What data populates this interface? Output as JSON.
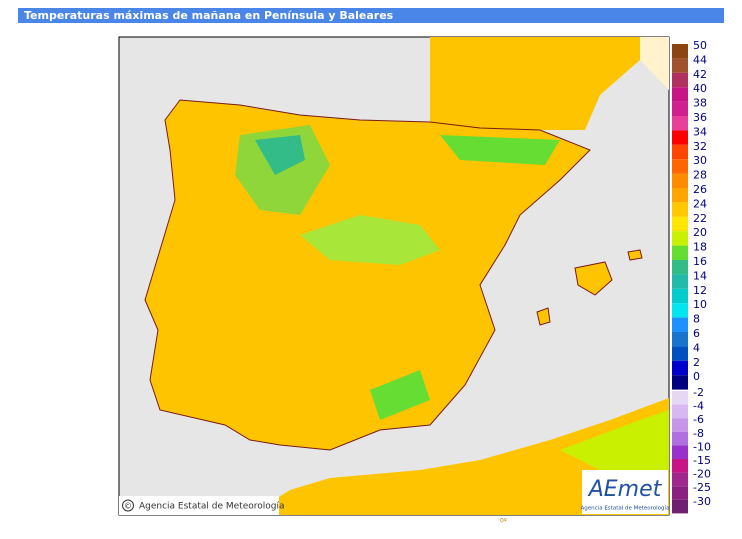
{
  "header": {
    "title": "Temperaturas máximas de mañana en Península y Baleares"
  },
  "map": {
    "credit": "Agencia Estatal de Meteorología",
    "credit_symbol": "©",
    "longitude_label": "0º",
    "logo": {
      "name": "AEmet",
      "subtitle": "Agencia Estatal de Meteorología"
    }
  },
  "legend": {
    "items": [
      {
        "label": 50,
        "color": "#8b4513"
      },
      {
        "label": 44,
        "color": "#a0522d"
      },
      {
        "label": 42,
        "color": "#b03060"
      },
      {
        "label": 40,
        "color": "#c71585"
      },
      {
        "label": 38,
        "color": "#d02090"
      },
      {
        "label": 36,
        "color": "#e8409a"
      },
      {
        "label": 34,
        "color": "#ff0000"
      },
      {
        "label": 32,
        "color": "#ff4500"
      },
      {
        "label": 30,
        "color": "#ff6600"
      },
      {
        "label": 28,
        "color": "#ff8c00"
      },
      {
        "label": 26,
        "color": "#ffa500"
      },
      {
        "label": 24,
        "color": "#ffc800"
      },
      {
        "label": 22,
        "color": "#ffe600"
      },
      {
        "label": 20,
        "color": "#c8f000"
      },
      {
        "label": 18,
        "color": "#66dd33"
      },
      {
        "label": 16,
        "color": "#33bb88"
      },
      {
        "label": 14,
        "color": "#22bbaa"
      },
      {
        "label": 12,
        "color": "#00cccc"
      },
      {
        "label": 10,
        "color": "#00e5ee"
      },
      {
        "label": 8,
        "color": "#1e90ff"
      },
      {
        "label": 6,
        "color": "#1874cd"
      },
      {
        "label": 4,
        "color": "#0050c0"
      },
      {
        "label": 2,
        "color": "#0000cd"
      },
      {
        "label": 0,
        "color": "#000080"
      }
    ],
    "negative_items": [
      {
        "label": -2,
        "color": "#e6d8f5"
      },
      {
        "label": -4,
        "color": "#d8b8f0"
      },
      {
        "label": -6,
        "color": "#c896e8"
      },
      {
        "label": -8,
        "color": "#b070e0"
      },
      {
        "label": -10,
        "color": "#9932cc"
      },
      {
        "label": -15,
        "color": "#c71585"
      },
      {
        "label": -20,
        "color": "#a0288c"
      },
      {
        "label": -25,
        "color": "#8b2080"
      },
      {
        "label": -30,
        "color": "#702070"
      }
    ]
  }
}
